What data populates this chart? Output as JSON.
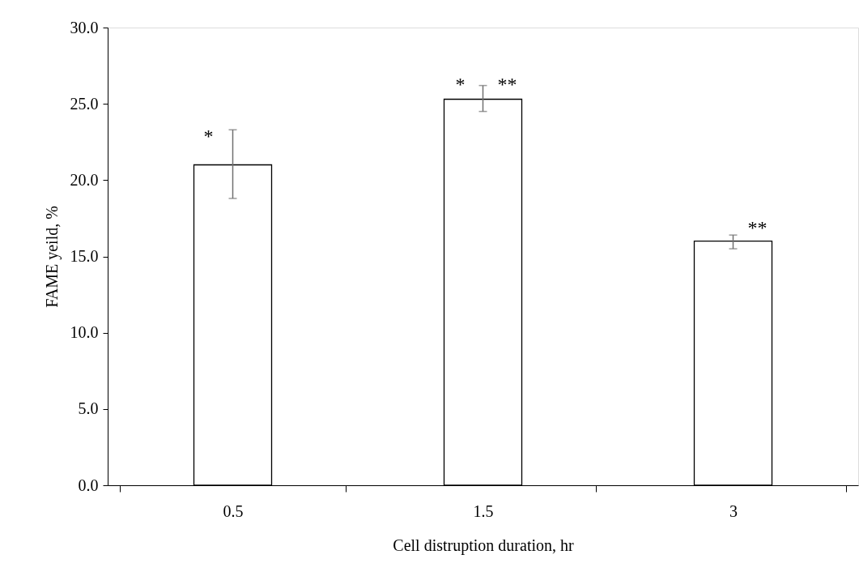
{
  "chart_data": {
    "type": "bar",
    "xlabel": "Cell distruption  duration,  hr",
    "ylabel": "FAME yeild,  %",
    "categories": [
      "0.5",
      "1.5",
      "3"
    ],
    "values": [
      21.0,
      25.3,
      16.0
    ],
    "errors": [
      [
        18.8,
        23.3
      ],
      [
        24.5,
        26.2
      ],
      [
        15.5,
        16.4
      ]
    ],
    "color": "#ffffff",
    "ylim": [
      0,
      30
    ],
    "yticks": [
      {
        "value": 0,
        "label": "0.0"
      },
      {
        "value": 5,
        "label": "5.0"
      },
      {
        "value": 10,
        "label": "10.0"
      },
      {
        "value": 15,
        "label": "15.0"
      },
      {
        "value": 20,
        "label": "20.0"
      },
      {
        "value": 25,
        "label": "25.0"
      },
      {
        "value": 30,
        "label": "30.0"
      }
    ],
    "grid": false,
    "annotations": [
      {
        "text": "*",
        "x": "0.5",
        "y": 22.5
      },
      {
        "text": "*",
        "x": "1.5",
        "y": 25.9
      },
      {
        "text": "**",
        "x": "1.5",
        "y": 25.9
      },
      {
        "text": "**",
        "x": "3",
        "y": 16.5
      }
    ]
  }
}
